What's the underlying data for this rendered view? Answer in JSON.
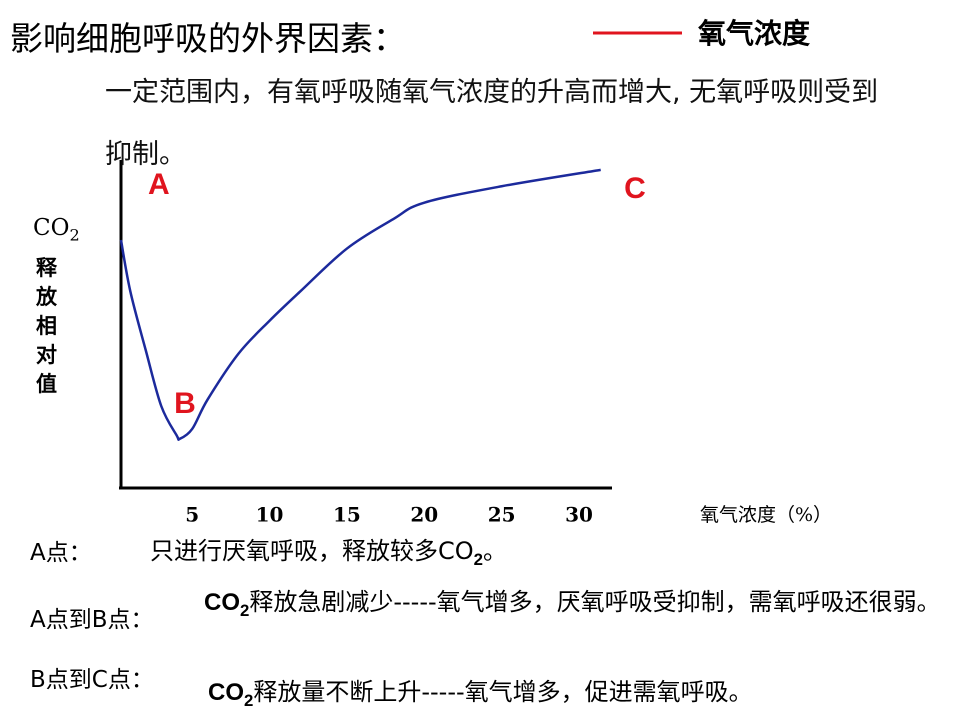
{
  "title": "影响细胞呼吸的外界因素：",
  "intro": "一定范围内，有氧呼吸随氧气浓度的升高而增大, 无氧呼吸则受到抑制。",
  "chart_data": {
    "type": "line",
    "legend": {
      "label": "氧气浓度",
      "color": "#e0141e"
    },
    "x": [
      0.4,
      1,
      2,
      3,
      4,
      4.2,
      5,
      6,
      8,
      10,
      12,
      15,
      18,
      20,
      25,
      31.4
    ],
    "series": [
      {
        "color": "#1c2a9c",
        "values": [
          75.6,
          60,
          42,
          25,
          16,
          15,
          18,
          27,
          41,
          51,
          60,
          73,
          82,
          87,
          92,
          97
        ]
      }
    ],
    "xlim": [
      0.4,
      32
    ],
    "xticks": [
      5,
      10,
      15,
      20,
      25,
      30
    ],
    "ylim": [
      0,
      100
    ],
    "x_label": "氧气浓度（%）",
    "y_label": {
      "main": "CO",
      "sub": "2",
      "rest": "释放相对值"
    },
    "annotations": [
      "A",
      "B",
      "C"
    ]
  },
  "notes": [
    {
      "label": "A点：",
      "before": "只进行厌氧呼吸，释放较多CO",
      "sub": "2",
      "after": "。"
    },
    {
      "label": "A点到B点：",
      "before": "CO",
      "sub": "2",
      "after": "释放急剧减少-----氧气增多，厌氧呼吸受抑制，需氧呼吸还很弱。"
    },
    {
      "label": "B点到C点：",
      "before": "CO",
      "sub": "2",
      "after": "释放量不断上升-----氧气增多，促进需氧呼吸。"
    }
  ]
}
